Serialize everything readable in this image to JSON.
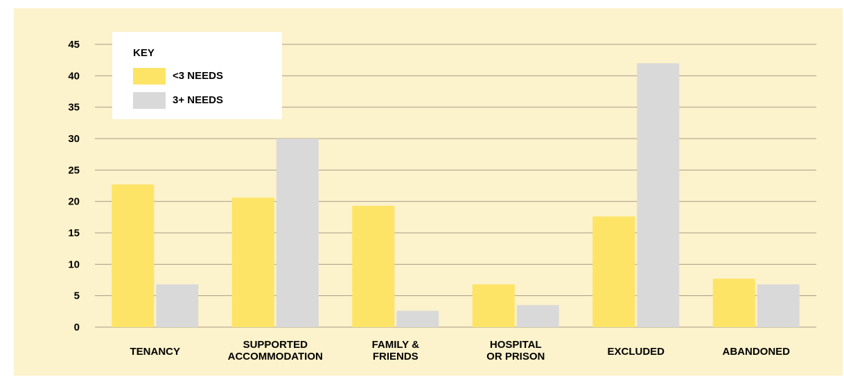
{
  "colors": {
    "background": "#fcf2cb",
    "gridline": "#a99a8a",
    "series_under3": "#fde466",
    "series_3plus": "#d9d9d9"
  },
  "legend": {
    "title": "KEY",
    "items": [
      {
        "label": "<3 NEEDS",
        "color": "#fde466"
      },
      {
        "label": "3+ NEEDS",
        "color": "#d9d9d9"
      }
    ]
  },
  "chart_data": {
    "type": "bar",
    "categories": [
      [
        "TENANCY"
      ],
      [
        "SUPPORTED",
        "ACCOMMODATION"
      ],
      [
        "FAMILY &",
        "FRIENDS"
      ],
      [
        "HOSPITAL",
        "OR PRISON"
      ],
      [
        "EXCLUDED"
      ],
      [
        "ABANDONED"
      ]
    ],
    "series": [
      {
        "name": "<3 NEEDS",
        "color": "#fde466",
        "values": [
          22.7,
          20.6,
          19.3,
          6.8,
          17.6,
          7.7
        ]
      },
      {
        "name": "3+ NEEDS",
        "color": "#d9d9d9",
        "values": [
          6.8,
          30,
          2.6,
          3.5,
          42,
          6.8
        ]
      }
    ],
    "yticks": [
      0,
      5,
      10,
      15,
      20,
      25,
      30,
      35,
      40,
      45
    ],
    "ylim": [
      0,
      45
    ],
    "grid": true,
    "legend_position": "top-left"
  }
}
